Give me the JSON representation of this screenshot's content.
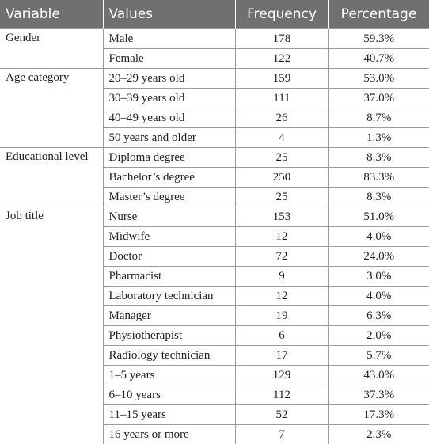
{
  "table": {
    "header": [
      "Variable",
      "Values",
      "Frequency",
      "Percentage"
    ],
    "groups": [
      {
        "variable": "Gender",
        "rows": [
          [
            "Male",
            178,
            "59.3%"
          ],
          [
            "Female",
            122,
            "40.7%"
          ]
        ]
      },
      {
        "variable": "Age category",
        "rows": [
          [
            "20–29 years old",
            159,
            "53.0%"
          ],
          [
            "30–39 years old",
            111,
            "37.0%"
          ],
          [
            "40–49 years old",
            26,
            "8.7%"
          ],
          [
            "50 years and older",
            4,
            "1.3%"
          ]
        ]
      },
      {
        "variable": "Educational level",
        "rows": [
          [
            "Diploma degree",
            25,
            "8.3%"
          ],
          [
            "Bachelor’s degree",
            250,
            "83.3%"
          ],
          [
            "Master’s degree",
            25,
            "8.3%"
          ]
        ]
      },
      {
        "variable": "Job title",
        "rows": [
          [
            "Nurse",
            153,
            "51.0%"
          ],
          [
            "Midwife",
            12,
            "4.0%"
          ],
          [
            "Doctor",
            72,
            "24.0%"
          ],
          [
            "Pharmacist",
            9,
            "3.0%"
          ],
          [
            "Laboratory technician",
            12,
            "4.0%"
          ],
          [
            "Manager",
            19,
            "6.3%"
          ],
          [
            "Physiotherapist",
            6,
            "2.0%"
          ],
          [
            "Radiology technician",
            17,
            "5.7%"
          ],
          [
            "1–5 years",
            129,
            "43.0%"
          ],
          [
            "6–10 years",
            112,
            "37.3%"
          ],
          [
            "11–15 years",
            52,
            "17.3%"
          ],
          [
            "16 years or more",
            7,
            "2.3%"
          ]
        ]
      }
    ]
  }
}
